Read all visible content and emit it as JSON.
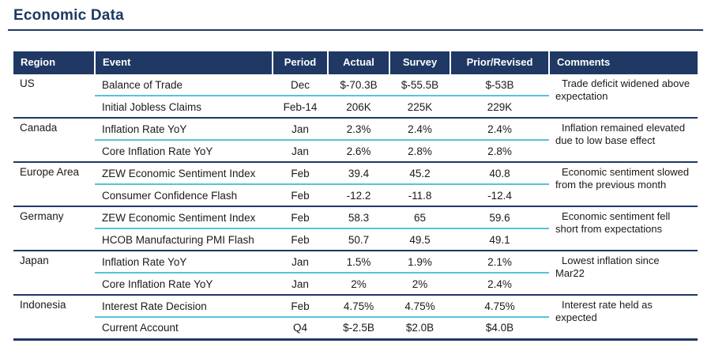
{
  "page": {
    "title": "Economic Data"
  },
  "colors": {
    "navy": "#1F3864",
    "cyan_divider": "#57C3D9",
    "header_text": "#FFFFFF",
    "body_text": "#1A1A1A",
    "background": "#FFFFFF"
  },
  "table": {
    "columns": [
      "Region",
      "Event",
      "Period",
      "Actual",
      "Survey",
      "Prior/Revised",
      "Comments"
    ],
    "groups": [
      {
        "region": "US",
        "comment": "Trade deficit widened above expectation",
        "rows": [
          {
            "event": "Balance of Trade",
            "period": "Dec",
            "actual": "$-70.3B",
            "survey": "$-55.5B",
            "prior": "$-53B"
          },
          {
            "event": "Initial Jobless Claims",
            "period": "Feb-14",
            "actual": "206K",
            "survey": "225K",
            "prior": "229K"
          }
        ]
      },
      {
        "region": "Canada",
        "comment": "Inflation remained elevated due to low base effect",
        "rows": [
          {
            "event": "Inflation Rate YoY",
            "period": "Jan",
            "actual": "2.3%",
            "survey": "2.4%",
            "prior": "2.4%"
          },
          {
            "event": "Core Inflation Rate YoY",
            "period": "Jan",
            "actual": "2.6%",
            "survey": "2.8%",
            "prior": "2.8%"
          }
        ]
      },
      {
        "region": "Europe Area",
        "comment": "Economic sentiment slowed from the previous month",
        "rows": [
          {
            "event": "ZEW Economic Sentiment Index",
            "period": "Feb",
            "actual": "39.4",
            "survey": "45.2",
            "prior": "40.8"
          },
          {
            "event": "Consumer Confidence Flash",
            "period": "Feb",
            "actual": "-12.2",
            "survey": "-11.8",
            "prior": "-12.4"
          }
        ]
      },
      {
        "region": "Germany",
        "comment": "Economic sentiment fell short from expectations",
        "rows": [
          {
            "event": "ZEW Economic Sentiment Index",
            "period": "Feb",
            "actual": "58.3",
            "survey": "65",
            "prior": "59.6"
          },
          {
            "event": "HCOB Manufacturing PMI Flash",
            "period": "Feb",
            "actual": "50.7",
            "survey": "49.5",
            "prior": "49.1"
          }
        ]
      },
      {
        "region": "Japan",
        "comment": "Lowest inflation since Mar22",
        "rows": [
          {
            "event": "Inflation Rate YoY",
            "period": "Jan",
            "actual": "1.5%",
            "survey": "1.9%",
            "prior": "2.1%"
          },
          {
            "event": "Core Inflation Rate YoY",
            "period": "Jan",
            "actual": "2%",
            "survey": "2%",
            "prior": "2.4%"
          }
        ]
      },
      {
        "region": "Indonesia",
        "comment": "Interest rate held as expected",
        "rows": [
          {
            "event": "Interest Rate Decision",
            "period": "Feb",
            "actual": "4.75%",
            "survey": "4.75%",
            "prior": "4.75%"
          },
          {
            "event": "Current Account",
            "period": "Q4",
            "actual": "$-2.5B",
            "survey": "$2.0B",
            "prior": "$4.0B"
          }
        ]
      }
    ]
  }
}
